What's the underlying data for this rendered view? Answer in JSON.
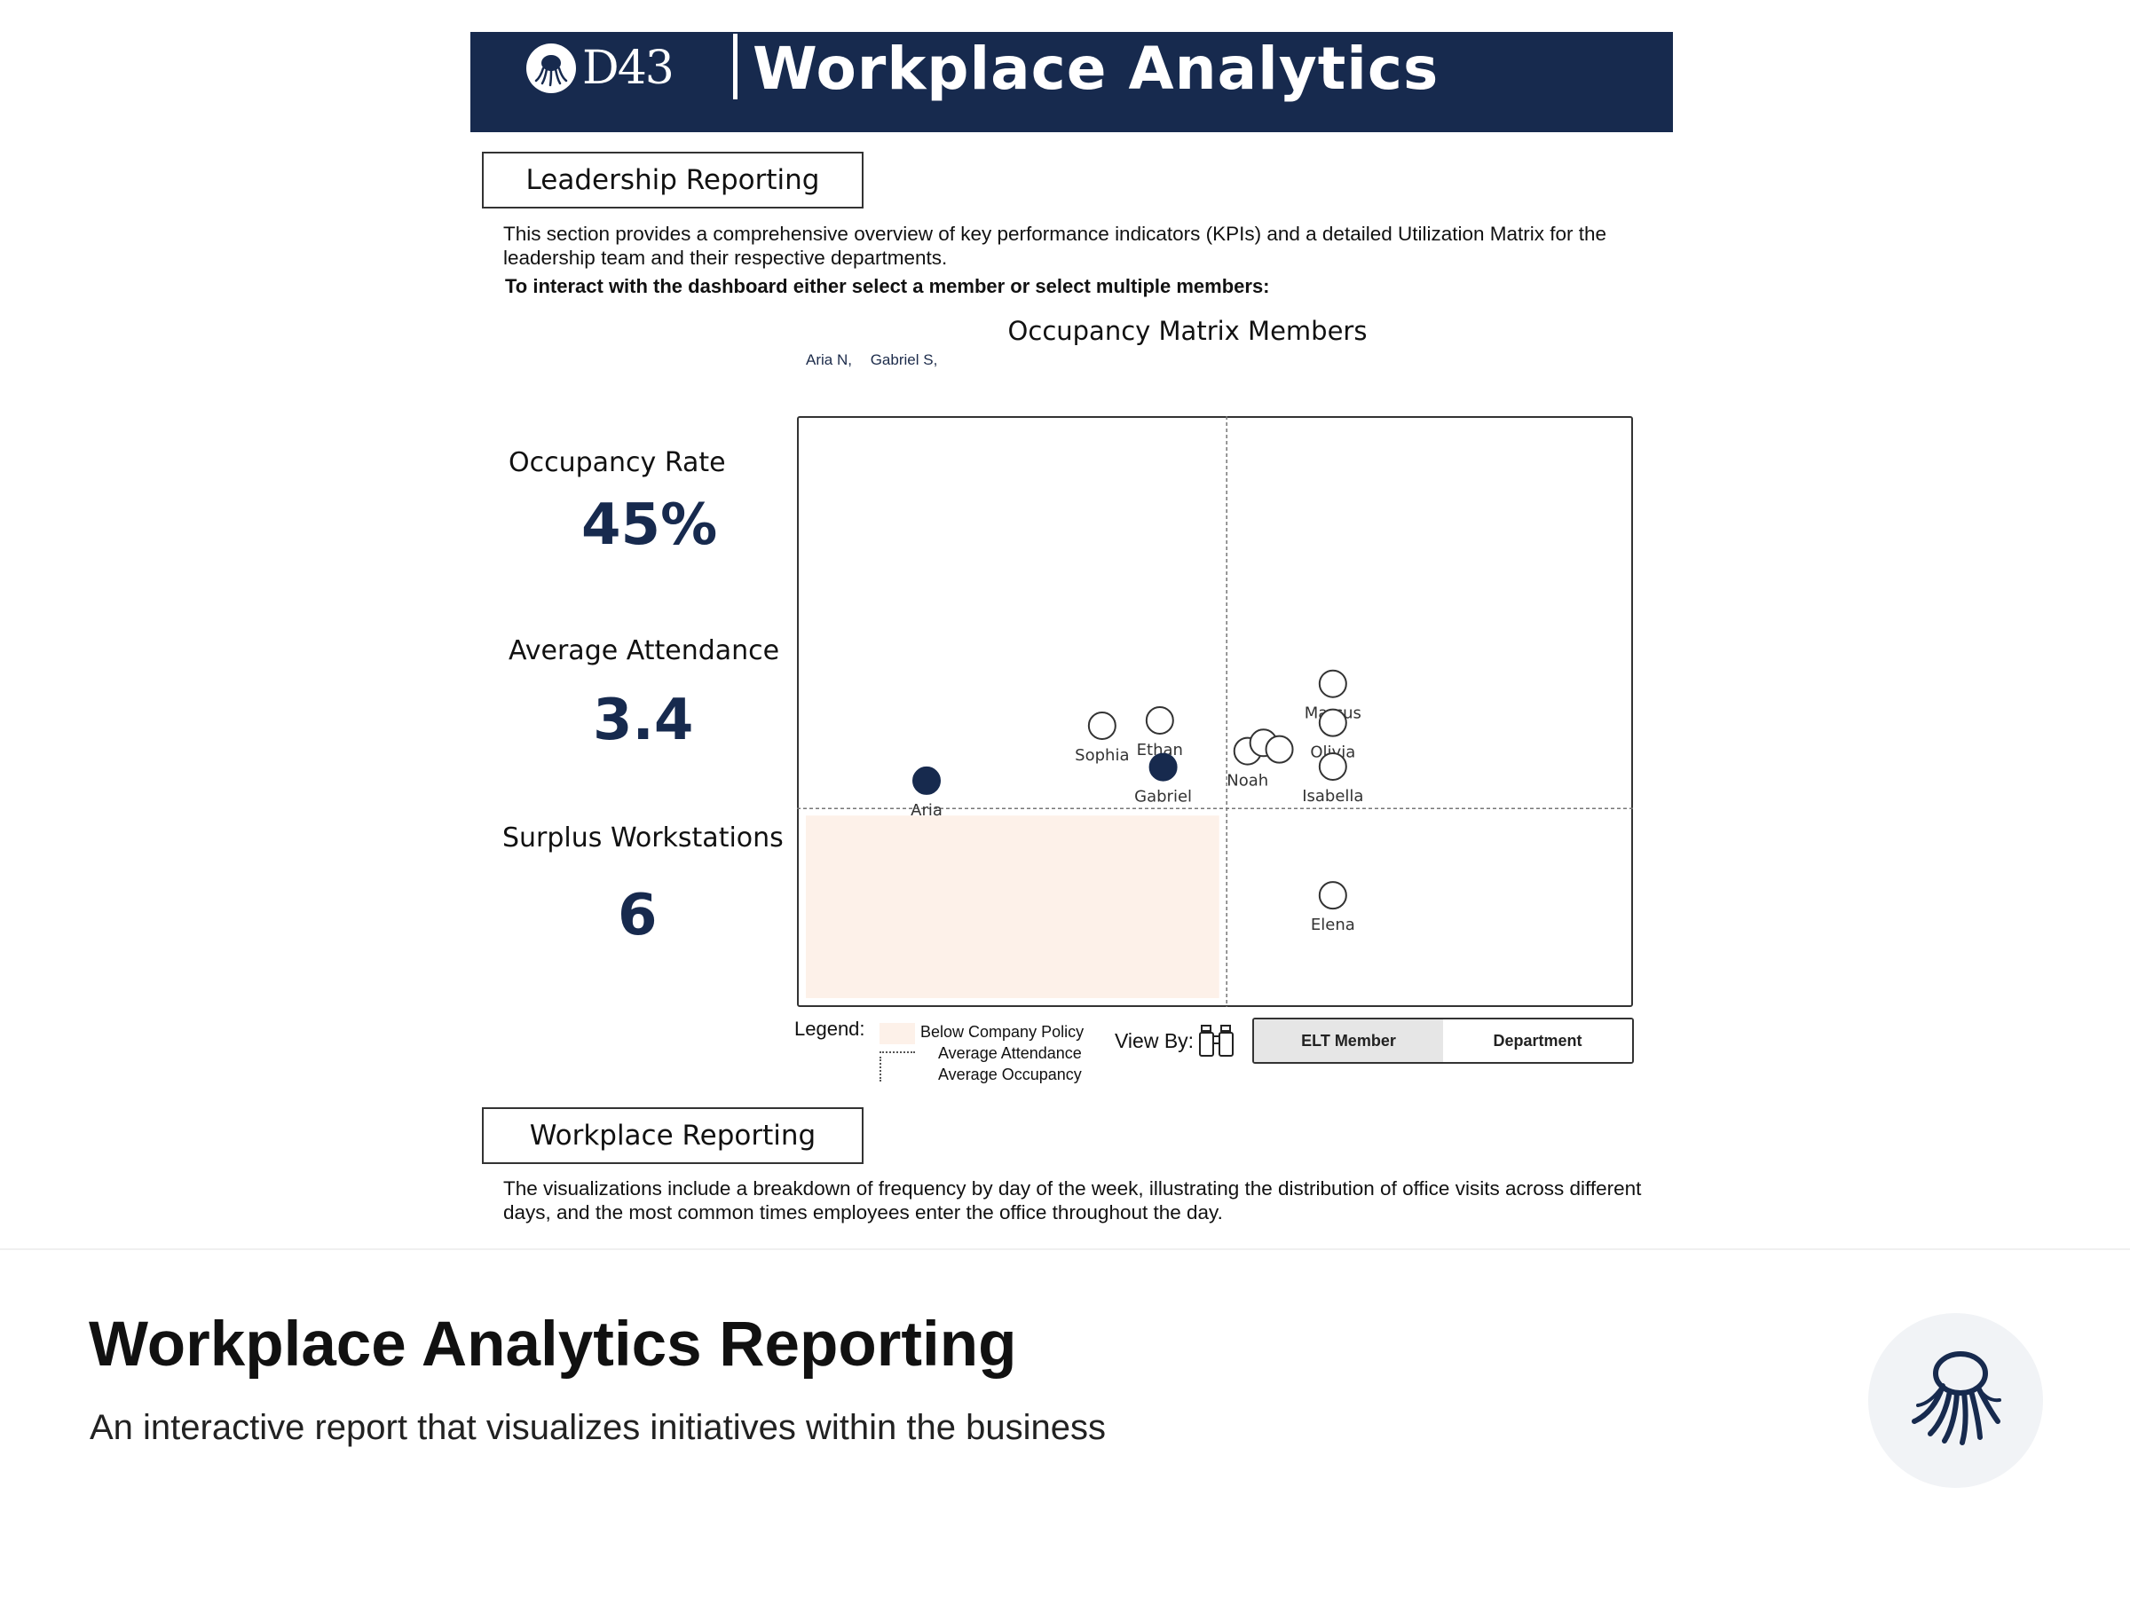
{
  "header": {
    "logo_text": "D43",
    "title": "Workplace Analytics",
    "brand_color": "#172a4e"
  },
  "leadership": {
    "heading": "Leadership Reporting",
    "description": "This section provides a comprehensive overview of key performance indicators (KPIs) and a detailed Utilization Matrix for the leadership team and their respective departments.",
    "instruction": "To interact with the dashboard either select a member or select multiple members:"
  },
  "matrix": {
    "title": "Occupancy Matrix Members",
    "selected_members": [
      "Aria N,",
      "Gabriel S,"
    ]
  },
  "kpis": [
    {
      "label": "Occupancy Rate",
      "value": "45%"
    },
    {
      "label": "Average Attendance",
      "value": "3.4"
    },
    {
      "label": "Surplus Workstations",
      "value": "6"
    }
  ],
  "chart_data": {
    "type": "scatter",
    "title": "Occupancy Matrix Members",
    "xlabel": "",
    "ylabel": "",
    "axes_visible": false,
    "average_x_line": 0.514,
    "average_y_line": 0.664,
    "below_policy_region": {
      "x_max": 0.505,
      "y_max": 0.654
    },
    "points": [
      {
        "name": "Marcus",
        "x": 0.641,
        "y": 0.453,
        "selected": false,
        "show_label": true
      },
      {
        "name": "Olivia",
        "x": 0.641,
        "y": 0.519,
        "selected": false,
        "show_label": true
      },
      {
        "name": "Isabella",
        "x": 0.641,
        "y": 0.593,
        "selected": false,
        "show_label": true
      },
      {
        "name": "Elena",
        "x": 0.641,
        "y": 0.811,
        "selected": false,
        "show_label": true
      },
      {
        "name": "Sophia",
        "x": 0.365,
        "y": 0.524,
        "selected": false,
        "show_label": true
      },
      {
        "name": "Ethan",
        "x": 0.434,
        "y": 0.515,
        "selected": false,
        "show_label": true
      },
      {
        "name": "Noah",
        "x": 0.539,
        "y": 0.567,
        "selected": false,
        "show_label": true
      },
      {
        "name": "",
        "x": 0.558,
        "y": 0.553,
        "selected": false,
        "show_label": false
      },
      {
        "name": "",
        "x": 0.577,
        "y": 0.564,
        "selected": false,
        "show_label": false
      },
      {
        "name": "Aria",
        "x": 0.155,
        "y": 0.617,
        "selected": true,
        "show_label": true
      },
      {
        "name": "Gabriel",
        "x": 0.438,
        "y": 0.594,
        "selected": true,
        "show_label": true
      }
    ],
    "colors": {
      "selected": "#172a4e",
      "unselected": "#ffffff",
      "region": "#fdf1e9"
    }
  },
  "legend": {
    "label": "Legend:",
    "items": [
      "Below Company Policy",
      "Average Attendance",
      "Average Occupancy"
    ]
  },
  "view_by": {
    "label": "View By:",
    "icon": "binoculars-icon",
    "options": [
      "ELT Member",
      "Department"
    ],
    "selected": "ELT Member"
  },
  "workplace": {
    "heading": "Workplace Reporting",
    "description": "The visualizations include a breakdown of frequency by day of the week, illustrating the distribution of office visits across different days, and the most common times employees enter the office throughout the day."
  },
  "footer": {
    "title": "Workplace Analytics Reporting",
    "subtitle": "An interactive report that visualizes initiatives within the business",
    "logo_icon": "octopus-icon"
  }
}
